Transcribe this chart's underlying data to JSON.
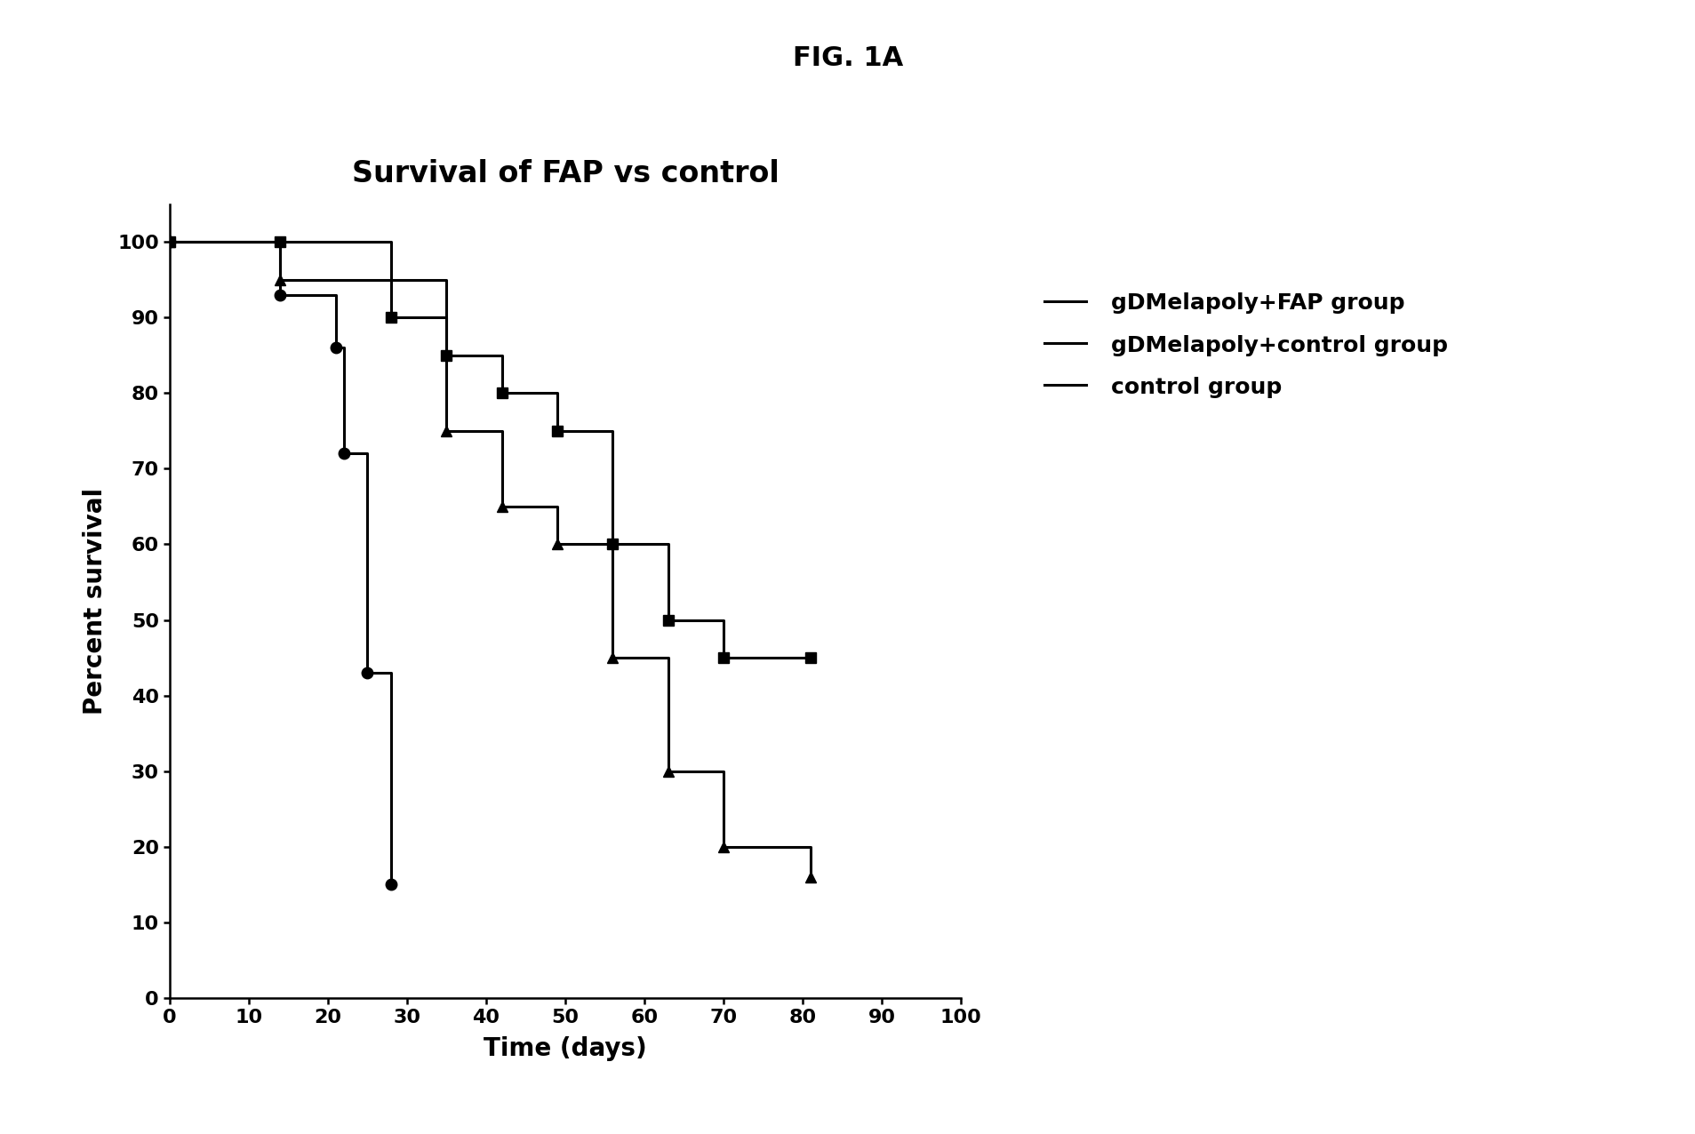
{
  "title": "Survival of FAP vs control",
  "fig_label": "FIG. 1A",
  "xlabel": "Time (days)",
  "ylabel": "Percent survival",
  "xlim": [
    0,
    100
  ],
  "ylim": [
    0,
    105
  ],
  "xticks": [
    0,
    10,
    20,
    30,
    40,
    50,
    60,
    70,
    80,
    90,
    100
  ],
  "yticks": [
    0,
    10,
    20,
    30,
    40,
    50,
    60,
    70,
    80,
    90,
    100
  ],
  "background_color": "#ffffff",
  "line_color": "#000000",
  "series": [
    {
      "label": "gDMelapoly+FAP group",
      "marker": "s",
      "step_x": [
        0,
        14,
        28,
        35,
        42,
        49,
        56,
        63,
        70,
        81
      ],
      "step_y": [
        100,
        100,
        90,
        85,
        80,
        75,
        60,
        50,
        45,
        45
      ]
    },
    {
      "label": "gDMelapoly+control group",
      "marker": "^",
      "step_x": [
        0,
        14,
        35,
        42,
        49,
        56,
        63,
        70,
        81
      ],
      "step_y": [
        100,
        95,
        75,
        65,
        60,
        45,
        30,
        20,
        16
      ]
    },
    {
      "label": "control group",
      "marker": "o",
      "step_x": [
        0,
        14,
        21,
        22,
        25,
        28
      ],
      "step_y": [
        100,
        93,
        86,
        72,
        43,
        15
      ]
    }
  ],
  "title_fontsize": 24,
  "figlabel_fontsize": 22,
  "axis_label_fontsize": 20,
  "tick_fontsize": 16,
  "legend_fontsize": 18,
  "linewidth": 2.2,
  "markersize": 9
}
